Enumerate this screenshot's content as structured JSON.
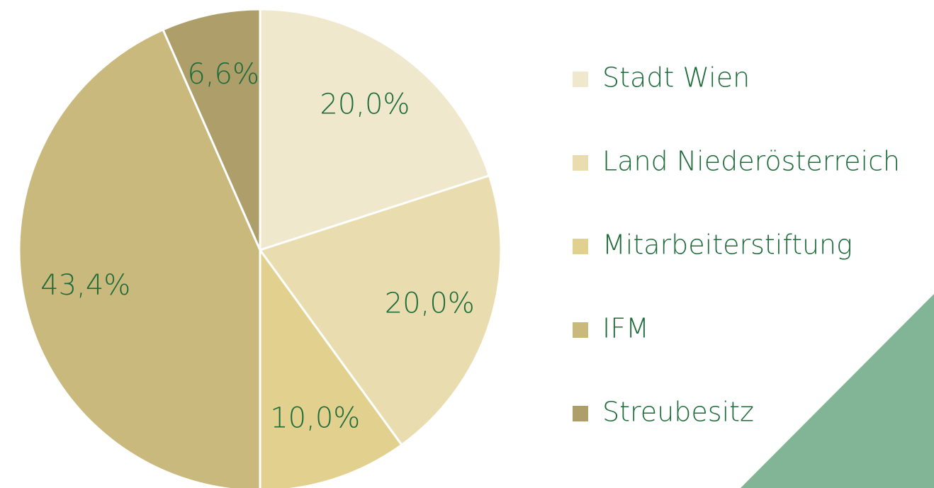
{
  "chart_data": {
    "type": "pie",
    "categories": [
      "Stadt Wien",
      "Land Niederösterreich",
      "Mitarbeiterstiftung",
      "IFM",
      "Streubesitz"
    ],
    "values": [
      20.0,
      20.0,
      10.0,
      43.4,
      6.6
    ],
    "value_labels": [
      "20,0%",
      "20,0%",
      "10,0%",
      "43,4%",
      "6,6%"
    ],
    "colors": [
      "#f0e8cc",
      "#e9ddb0",
      "#e2d18e",
      "#c9b97c",
      "#ae9e6a"
    ],
    "legend": "right"
  }
}
